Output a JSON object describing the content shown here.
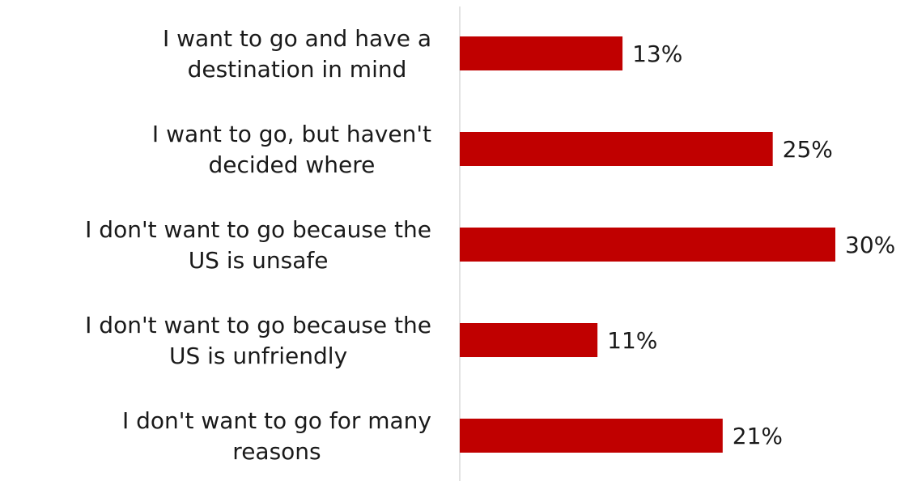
{
  "chart_data": {
    "type": "bar",
    "orientation": "horizontal",
    "categories": [
      [
        "I want to go and have a",
        "destination in mind"
      ],
      [
        "I want to go, but haven't",
        "decided where"
      ],
      [
        "I don't want to go because the",
        "US is unsafe"
      ],
      [
        "I don't want to go because the",
        "US is unfriendly"
      ],
      [
        "I don't want to go for many",
        "reasons"
      ]
    ],
    "values": [
      13,
      25,
      30,
      11,
      21
    ],
    "value_labels": [
      "13%",
      "25%",
      "30%",
      "11%",
      "21%"
    ],
    "xlim": [
      0,
      30
    ],
    "grid": false,
    "bar_color": "#c00000",
    "axis_color": "#d9d9d9"
  }
}
